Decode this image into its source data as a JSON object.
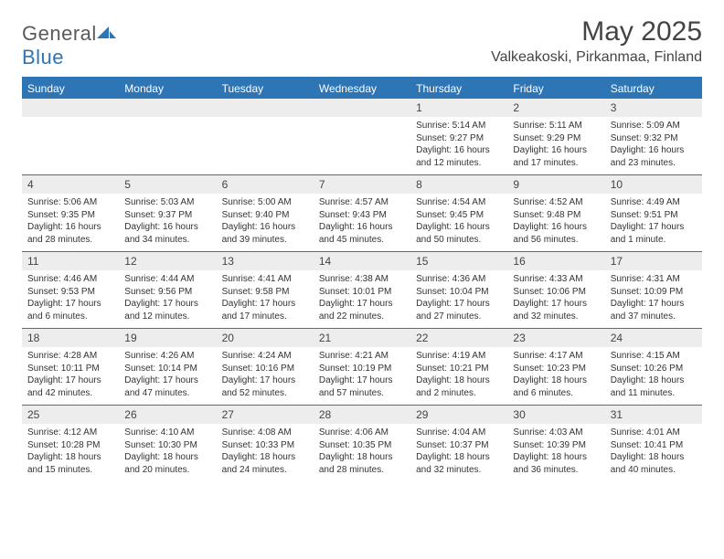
{
  "logo": {
    "textA": "General",
    "textB": "Blue"
  },
  "header": {
    "month_title": "May 2025",
    "location": "Valkeakoski, Pirkanmaa, Finland"
  },
  "colors": {
    "header_bg": "#2e75b6",
    "header_text": "#ffffff",
    "daynum_bg": "#ededed",
    "divider": "#2e75b6",
    "body_text": "#333333"
  },
  "daynames": [
    "Sunday",
    "Monday",
    "Tuesday",
    "Wednesday",
    "Thursday",
    "Friday",
    "Saturday"
  ],
  "weeks": [
    [
      null,
      null,
      null,
      null,
      {
        "n": "1",
        "sr": "5:14 AM",
        "ss": "9:27 PM",
        "dl": "16 hours and 12 minutes."
      },
      {
        "n": "2",
        "sr": "5:11 AM",
        "ss": "9:29 PM",
        "dl": "16 hours and 17 minutes."
      },
      {
        "n": "3",
        "sr": "5:09 AM",
        "ss": "9:32 PM",
        "dl": "16 hours and 23 minutes."
      }
    ],
    [
      {
        "n": "4",
        "sr": "5:06 AM",
        "ss": "9:35 PM",
        "dl": "16 hours and 28 minutes."
      },
      {
        "n": "5",
        "sr": "5:03 AM",
        "ss": "9:37 PM",
        "dl": "16 hours and 34 minutes."
      },
      {
        "n": "6",
        "sr": "5:00 AM",
        "ss": "9:40 PM",
        "dl": "16 hours and 39 minutes."
      },
      {
        "n": "7",
        "sr": "4:57 AM",
        "ss": "9:43 PM",
        "dl": "16 hours and 45 minutes."
      },
      {
        "n": "8",
        "sr": "4:54 AM",
        "ss": "9:45 PM",
        "dl": "16 hours and 50 minutes."
      },
      {
        "n": "9",
        "sr": "4:52 AM",
        "ss": "9:48 PM",
        "dl": "16 hours and 56 minutes."
      },
      {
        "n": "10",
        "sr": "4:49 AM",
        "ss": "9:51 PM",
        "dl": "17 hours and 1 minute."
      }
    ],
    [
      {
        "n": "11",
        "sr": "4:46 AM",
        "ss": "9:53 PM",
        "dl": "17 hours and 6 minutes."
      },
      {
        "n": "12",
        "sr": "4:44 AM",
        "ss": "9:56 PM",
        "dl": "17 hours and 12 minutes."
      },
      {
        "n": "13",
        "sr": "4:41 AM",
        "ss": "9:58 PM",
        "dl": "17 hours and 17 minutes."
      },
      {
        "n": "14",
        "sr": "4:38 AM",
        "ss": "10:01 PM",
        "dl": "17 hours and 22 minutes."
      },
      {
        "n": "15",
        "sr": "4:36 AM",
        "ss": "10:04 PM",
        "dl": "17 hours and 27 minutes."
      },
      {
        "n": "16",
        "sr": "4:33 AM",
        "ss": "10:06 PM",
        "dl": "17 hours and 32 minutes."
      },
      {
        "n": "17",
        "sr": "4:31 AM",
        "ss": "10:09 PM",
        "dl": "17 hours and 37 minutes."
      }
    ],
    [
      {
        "n": "18",
        "sr": "4:28 AM",
        "ss": "10:11 PM",
        "dl": "17 hours and 42 minutes."
      },
      {
        "n": "19",
        "sr": "4:26 AM",
        "ss": "10:14 PM",
        "dl": "17 hours and 47 minutes."
      },
      {
        "n": "20",
        "sr": "4:24 AM",
        "ss": "10:16 PM",
        "dl": "17 hours and 52 minutes."
      },
      {
        "n": "21",
        "sr": "4:21 AM",
        "ss": "10:19 PM",
        "dl": "17 hours and 57 minutes."
      },
      {
        "n": "22",
        "sr": "4:19 AM",
        "ss": "10:21 PM",
        "dl": "18 hours and 2 minutes."
      },
      {
        "n": "23",
        "sr": "4:17 AM",
        "ss": "10:23 PM",
        "dl": "18 hours and 6 minutes."
      },
      {
        "n": "24",
        "sr": "4:15 AM",
        "ss": "10:26 PM",
        "dl": "18 hours and 11 minutes."
      }
    ],
    [
      {
        "n": "25",
        "sr": "4:12 AM",
        "ss": "10:28 PM",
        "dl": "18 hours and 15 minutes."
      },
      {
        "n": "26",
        "sr": "4:10 AM",
        "ss": "10:30 PM",
        "dl": "18 hours and 20 minutes."
      },
      {
        "n": "27",
        "sr": "4:08 AM",
        "ss": "10:33 PM",
        "dl": "18 hours and 24 minutes."
      },
      {
        "n": "28",
        "sr": "4:06 AM",
        "ss": "10:35 PM",
        "dl": "18 hours and 28 minutes."
      },
      {
        "n": "29",
        "sr": "4:04 AM",
        "ss": "10:37 PM",
        "dl": "18 hours and 32 minutes."
      },
      {
        "n": "30",
        "sr": "4:03 AM",
        "ss": "10:39 PM",
        "dl": "18 hours and 36 minutes."
      },
      {
        "n": "31",
        "sr": "4:01 AM",
        "ss": "10:41 PM",
        "dl": "18 hours and 40 minutes."
      }
    ]
  ],
  "labels": {
    "sunrise": "Sunrise:",
    "sunset": "Sunset:",
    "daylight": "Daylight:"
  }
}
